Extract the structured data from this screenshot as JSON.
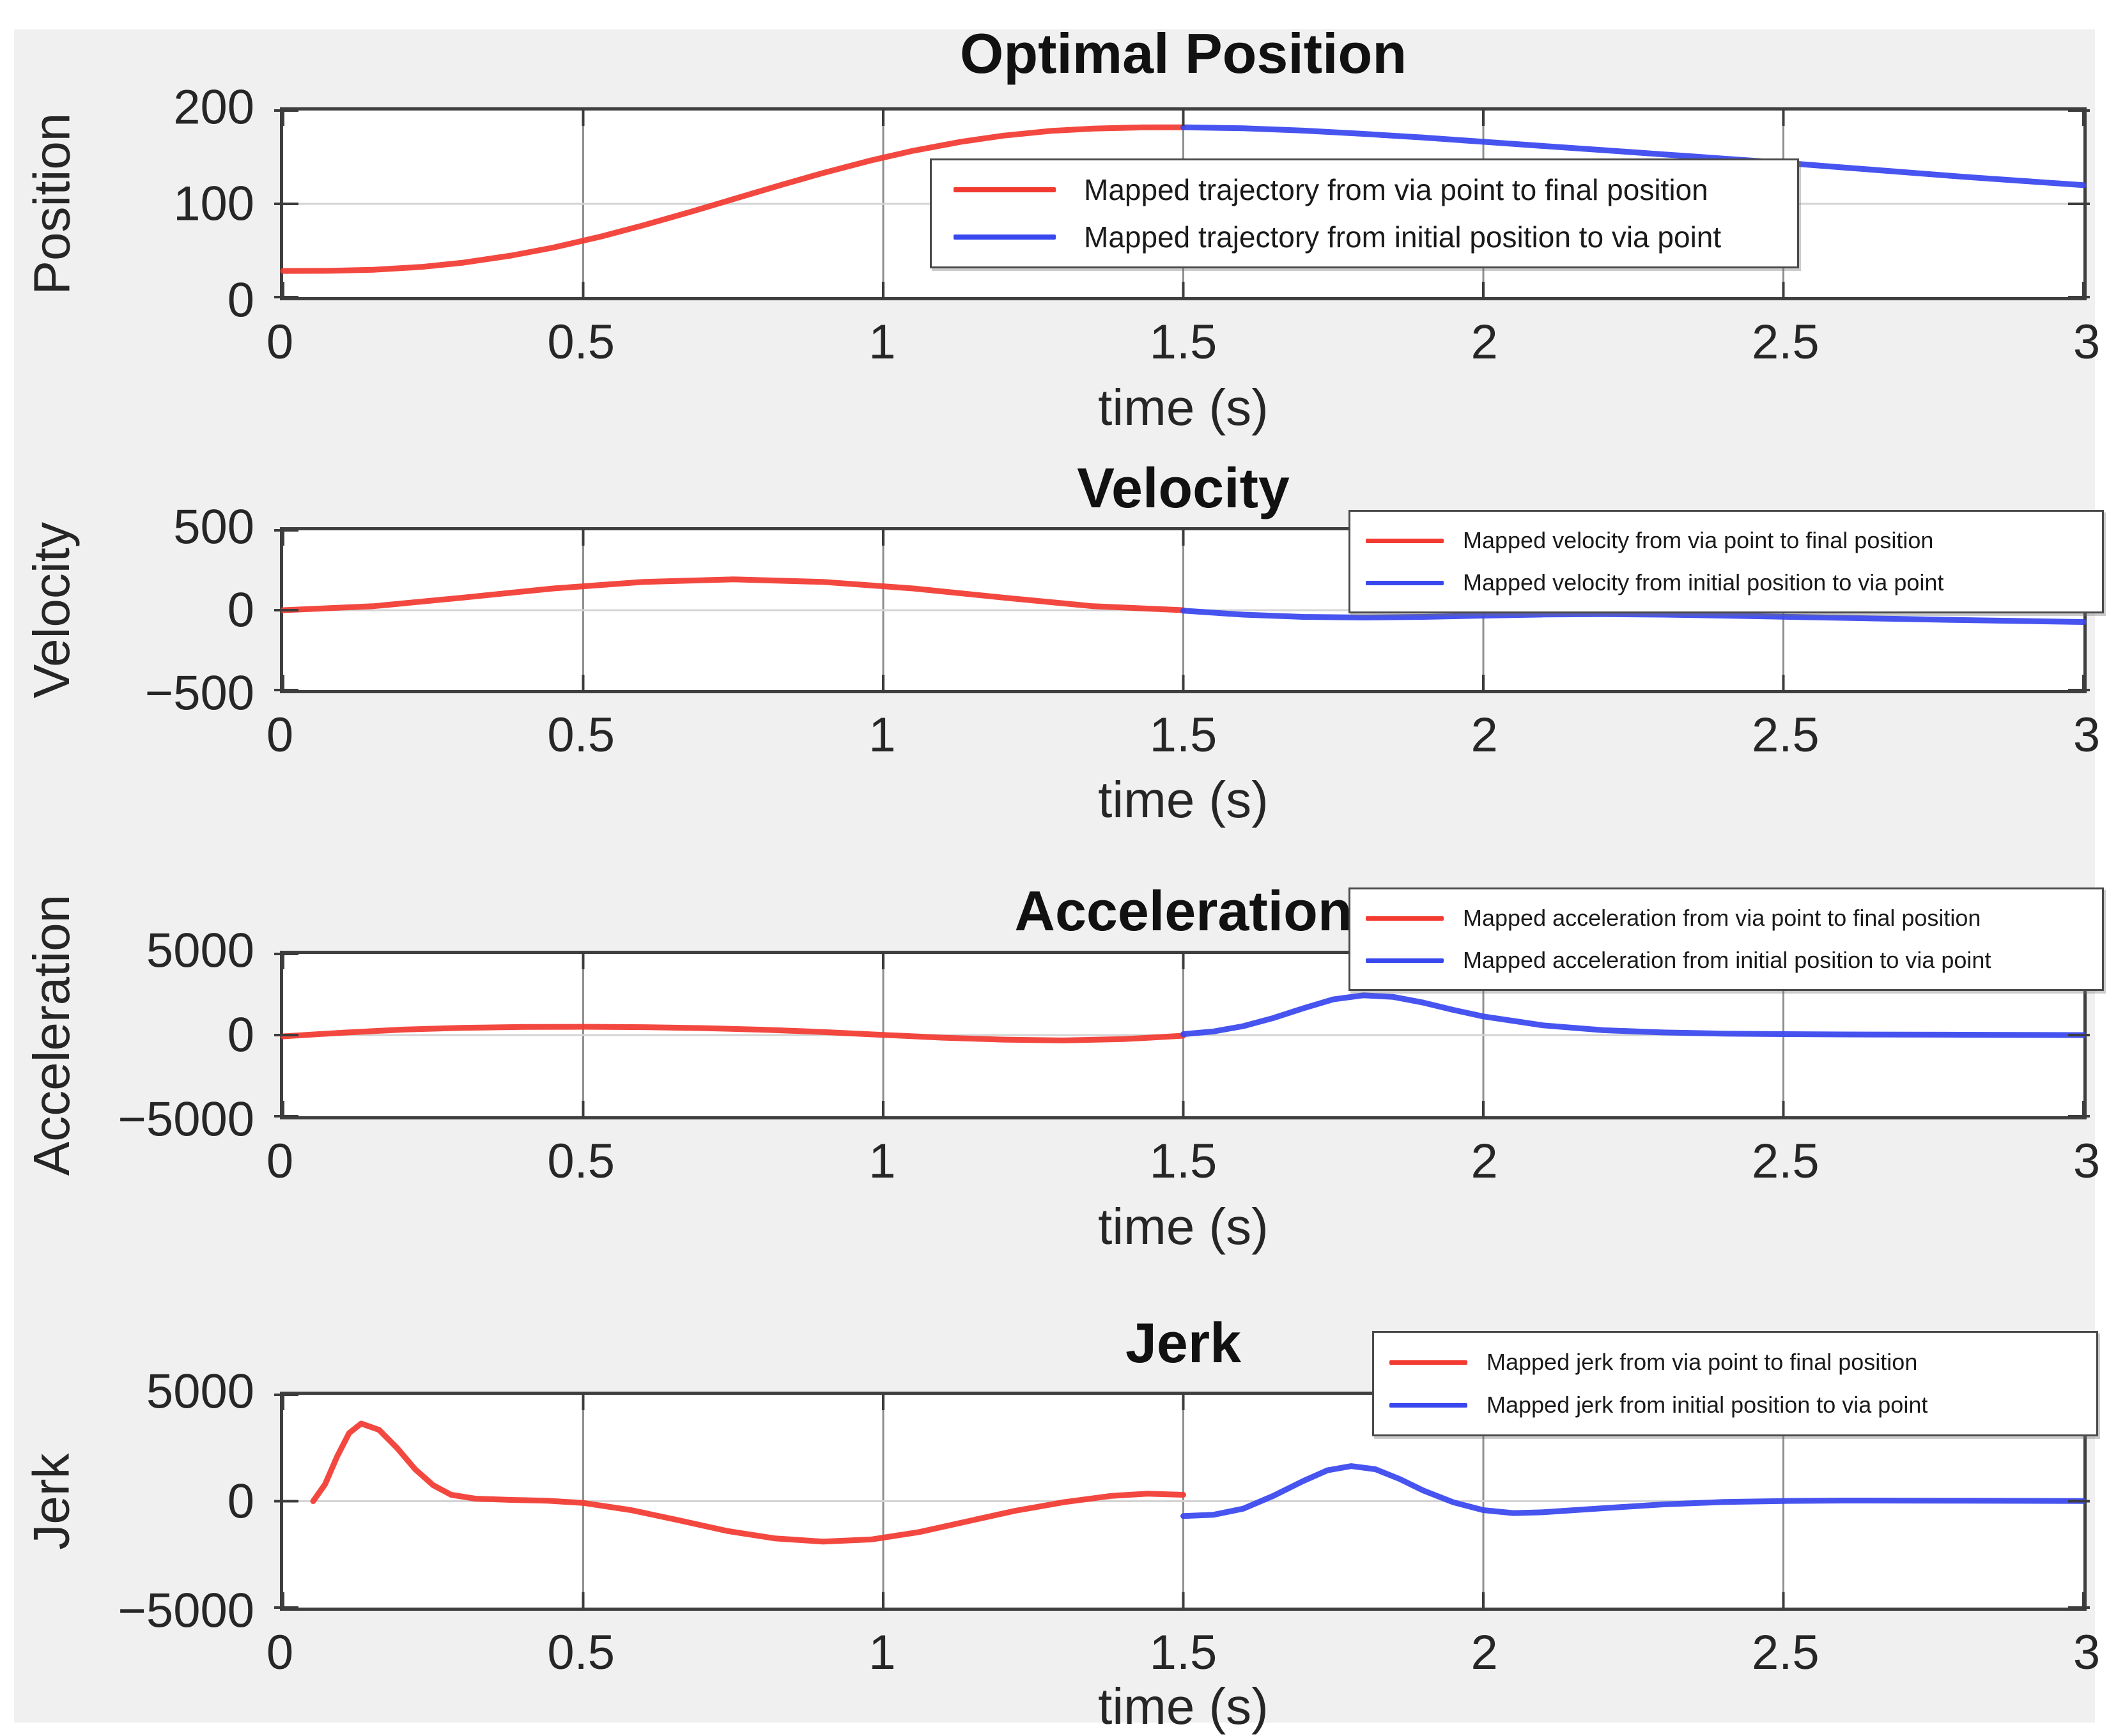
{
  "figure": {
    "background_color": "#f0f0f0",
    "axes_background": "#ffffff",
    "axes_edge_color": "#3f3f3f",
    "grid_x_color": "#8f8f8f",
    "grid_y_color": "#d4d4d4",
    "red": "#f23a31",
    "blue": "#3947ef"
  },
  "chart_data": [
    {
      "type": "line",
      "title": "Optimal Position",
      "ylabel": "Position",
      "xlabel": "time (s)",
      "xlim": [
        0,
        3
      ],
      "ylim": [
        0,
        200
      ],
      "grid": true,
      "legend_position": "inside-center",
      "xticks": [
        {
          "value": 0,
          "label": "0"
        },
        {
          "value": 0.5,
          "label": "0.5"
        },
        {
          "value": 1,
          "label": "1"
        },
        {
          "value": 1.5,
          "label": "1.5"
        },
        {
          "value": 2,
          "label": "2"
        },
        {
          "value": 2.5,
          "label": "2.5"
        },
        {
          "value": 3,
          "label": "3"
        }
      ],
      "yticks": [
        {
          "value": 0,
          "label": "0"
        },
        {
          "value": 100,
          "label": "100"
        },
        {
          "value": 200,
          "label": "200"
        }
      ],
      "series": [
        {
          "name": "position-via-to-final",
          "color": "#f23a31",
          "label": "Mapped trajectory from via point to final position",
          "x": [
            0,
            0.08,
            0.15,
            0.23,
            0.3,
            0.38,
            0.45,
            0.53,
            0.6,
            0.68,
            0.75,
            0.83,
            0.9,
            0.98,
            1.05,
            1.13,
            1.2,
            1.28,
            1.35,
            1.43,
            1.5
          ],
          "y": [
            28,
            28.2,
            29.3,
            32.3,
            36.9,
            44.5,
            53.1,
            65,
            76.9,
            91.6,
            105,
            120.3,
            133.1,
            146.6,
            156.9,
            166.6,
            173.1,
            178.2,
            180.7,
            181.9,
            182
          ]
        },
        {
          "name": "position-initial-to-via",
          "color": "#3947ef",
          "label": "Mapped trajectory from initial position to via point",
          "x": [
            1.5,
            1.6,
            1.7,
            1.8,
            1.9,
            2,
            2.1,
            2.2,
            2.3,
            2.4,
            2.5,
            2.6,
            2.7,
            2.8,
            2.9,
            3
          ],
          "y": [
            182,
            181,
            178.5,
            175,
            171,
            166.5,
            162,
            157.5,
            153,
            148.5,
            144,
            139,
            134,
            129,
            124.5,
            120
          ]
        }
      ]
    },
    {
      "type": "line",
      "title": "Velocity",
      "ylabel": "Velocity",
      "xlabel": "time (s)",
      "xlim": [
        0,
        3
      ],
      "ylim": [
        -500,
        500
      ],
      "grid": true,
      "legend_position": "top-right",
      "xticks": [
        {
          "value": 0,
          "label": "0"
        },
        {
          "value": 0.5,
          "label": "0.5"
        },
        {
          "value": 1,
          "label": "1"
        },
        {
          "value": 1.5,
          "label": "1.5"
        },
        {
          "value": 2,
          "label": "2"
        },
        {
          "value": 2.5,
          "label": "2.5"
        },
        {
          "value": 3,
          "label": "3"
        }
      ],
      "yticks": [
        {
          "value": -500,
          "label": "−500"
        },
        {
          "value": 0,
          "label": "0"
        },
        {
          "value": 500,
          "label": "500"
        }
      ],
      "series": [
        {
          "name": "velocity-via-to-final",
          "color": "#f23a31",
          "label": "Mapped velocity from via point to final position",
          "x": [
            0,
            0.15,
            0.3,
            0.45,
            0.6,
            0.75,
            0.9,
            1.05,
            1.2,
            1.35,
            1.5
          ],
          "y": [
            0,
            25,
            79,
            136,
            177,
            193,
            177,
            136,
            79,
            25,
            0
          ]
        },
        {
          "name": "velocity-initial-to-via",
          "color": "#3947ef",
          "label": "Mapped velocity from initial position to via point",
          "x": [
            1.5,
            1.6,
            1.7,
            1.8,
            1.9,
            2,
            2.1,
            2.2,
            2.3,
            2.4,
            2.5,
            2.6,
            2.7,
            2.8,
            2.9,
            3
          ],
          "y": [
            -3,
            -28,
            -42,
            -46,
            -42,
            -34,
            -27,
            -25,
            -28,
            -34,
            -41,
            -48,
            -55,
            -62,
            -68,
            -74
          ]
        }
      ]
    },
    {
      "type": "line",
      "title": "Acceleration",
      "ylabel": "Acceleration",
      "xlabel": "time (s)",
      "xlim": [
        0,
        3
      ],
      "ylim": [
        -5000,
        5000
      ],
      "grid": true,
      "legend_position": "top-right",
      "xticks": [
        {
          "value": 0,
          "label": "0"
        },
        {
          "value": 0.5,
          "label": "0.5"
        },
        {
          "value": 1,
          "label": "1"
        },
        {
          "value": 1.5,
          "label": "1.5"
        },
        {
          "value": 2,
          "label": "2"
        },
        {
          "value": 2.5,
          "label": "2.5"
        },
        {
          "value": 3,
          "label": "3"
        }
      ],
      "yticks": [
        {
          "value": -5000,
          "label": "−5000"
        },
        {
          "value": 0,
          "label": "0"
        },
        {
          "value": 5000,
          "label": "5000"
        }
      ],
      "series": [
        {
          "name": "acceleration-via-to-final",
          "color": "#f23a31",
          "label": "Mapped acceleration from via point to final position",
          "x": [
            0,
            0.1,
            0.2,
            0.3,
            0.4,
            0.5,
            0.6,
            0.7,
            0.8,
            0.9,
            1,
            1.1,
            1.2,
            1.3,
            1.4,
            1.45,
            1.5
          ],
          "y": [
            -80,
            150,
            340,
            450,
            500,
            510,
            490,
            430,
            330,
            190,
            10,
            -160,
            -280,
            -330,
            -250,
            -150,
            -40
          ]
        },
        {
          "name": "acceleration-initial-to-via",
          "color": "#3947ef",
          "label": "Mapped acceleration from initial position to via point",
          "x": [
            1.5,
            1.55,
            1.6,
            1.65,
            1.7,
            1.75,
            1.8,
            1.85,
            1.9,
            1.95,
            2,
            2.1,
            2.2,
            2.3,
            2.4,
            2.5,
            2.6,
            2.7,
            2.8,
            2.9,
            3
          ],
          "y": [
            60,
            220,
            550,
            1050,
            1650,
            2200,
            2450,
            2350,
            2000,
            1550,
            1150,
            600,
            300,
            160,
            90,
            60,
            40,
            30,
            20,
            10,
            0
          ]
        }
      ]
    },
    {
      "type": "line",
      "title": "Jerk",
      "ylabel": "Jerk",
      "xlabel": "time (s)",
      "xlim": [
        0,
        3
      ],
      "ylim": [
        -5000,
        5000
      ],
      "grid": true,
      "legend_position": "top-right",
      "xticks": [
        {
          "value": 0,
          "label": "0"
        },
        {
          "value": 0.5,
          "label": "0.5"
        },
        {
          "value": 1,
          "label": "1"
        },
        {
          "value": 1.5,
          "label": "1.5"
        },
        {
          "value": 2,
          "label": "2"
        },
        {
          "value": 2.5,
          "label": "2.5"
        },
        {
          "value": 3,
          "label": "3"
        }
      ],
      "yticks": [
        {
          "value": -5000,
          "label": "−5000"
        },
        {
          "value": 0,
          "label": "0"
        },
        {
          "value": 5000,
          "label": "5000"
        }
      ],
      "series": [
        {
          "name": "jerk-via-to-final",
          "color": "#f23a31",
          "label": "Mapped jerk from via point to final position",
          "x": [
            0.05,
            0.07,
            0.09,
            0.11,
            0.13,
            0.16,
            0.19,
            0.22,
            0.25,
            0.28,
            0.32,
            0.38,
            0.44,
            0.5,
            0.58,
            0.66,
            0.74,
            0.82,
            0.9,
            0.98,
            1.06,
            1.14,
            1.22,
            1.3,
            1.38,
            1.44,
            1.5
          ],
          "y": [
            0,
            800,
            2100,
            3200,
            3650,
            3350,
            2500,
            1500,
            750,
            300,
            120,
            60,
            20,
            -80,
            -420,
            -900,
            -1400,
            -1750,
            -1900,
            -1800,
            -1450,
            -950,
            -450,
            -50,
            250,
            350,
            300
          ]
        },
        {
          "name": "jerk-initial-to-via",
          "color": "#3947ef",
          "label": "Mapped jerk from initial position to via point",
          "x": [
            1.5,
            1.55,
            1.6,
            1.65,
            1.7,
            1.74,
            1.78,
            1.82,
            1.86,
            1.9,
            1.95,
            2,
            2.05,
            2.1,
            2.2,
            2.3,
            2.4,
            2.5,
            2.6,
            2.8,
            3
          ],
          "y": [
            -700,
            -640,
            -350,
            250,
            950,
            1450,
            1650,
            1500,
            1050,
            500,
            -50,
            -420,
            -560,
            -520,
            -330,
            -150,
            -40,
            10,
            30,
            20,
            10
          ]
        }
      ]
    }
  ]
}
